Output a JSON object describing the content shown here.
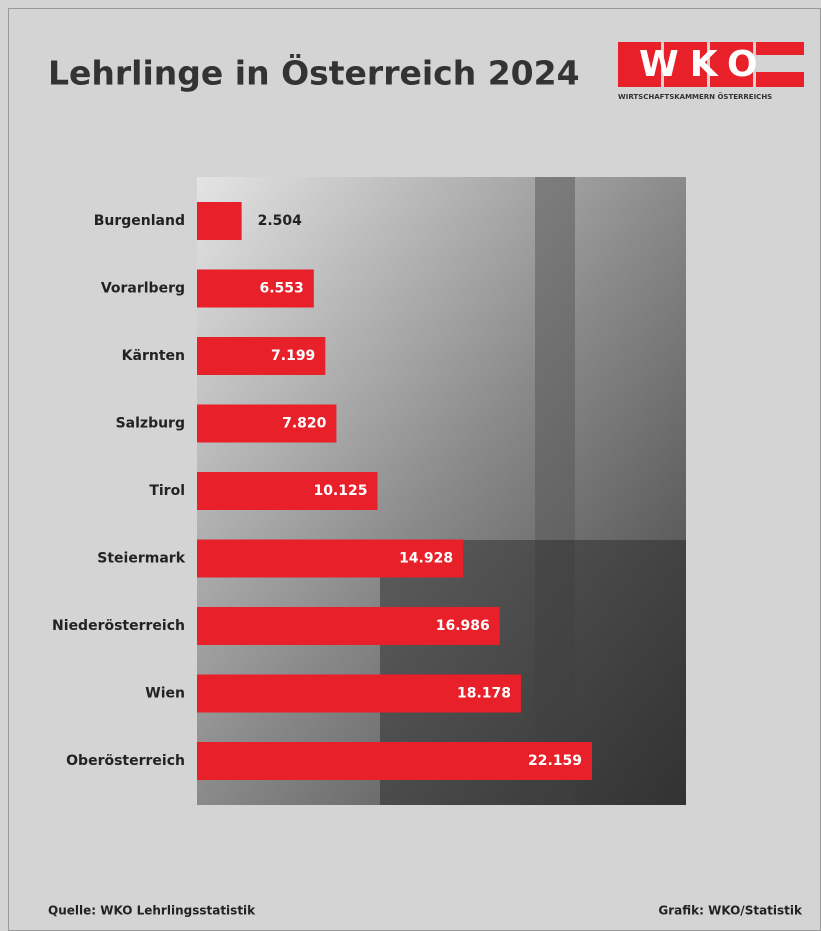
{
  "chart_data": {
    "type": "bar",
    "orientation": "horizontal",
    "title": "Lehrlinge in Österreich 2024",
    "logo": {
      "text": "WKO",
      "subtitle": "WIRTSCHAFTSKAMMERN ÖSTERREICHS"
    },
    "categories": [
      "Burgenland",
      "Vorarlberg",
      "Kärnten",
      "Salzburg",
      "Tirol",
      "Steiermark",
      "Niederösterreich",
      "Wien",
      "Oberösterreich"
    ],
    "values": [
      2504,
      6553,
      7199,
      7820,
      10125,
      14928,
      16986,
      18178,
      22159
    ],
    "value_labels": [
      "2.504",
      "6.553",
      "7.199",
      "7.820",
      "10.125",
      "14.928",
      "16.986",
      "18.178",
      "22.159"
    ],
    "color": "#e8202a",
    "source": "Quelle: WKO Lehrlingsstatistik",
    "credit": "Grafik: WKO/Statistik"
  }
}
